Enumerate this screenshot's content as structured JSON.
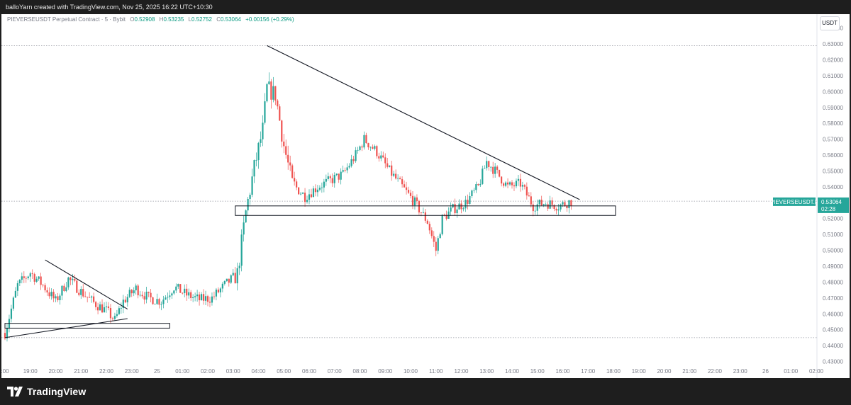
{
  "header": {
    "attribution": "balloYarn created with TradingView.com, Nov 25, 2025 16:22 UTC+10:30"
  },
  "legend": {
    "symbol": "PIEVERSEUSDT Perpetual Contract · 5 · Bybit",
    "open_label": "O",
    "open": "0.52908",
    "high_label": "H",
    "high": "0.53235",
    "low_label": "L",
    "low": "0.52752",
    "close_label": "C",
    "close": "0.53064",
    "change": "+0.00156 (+0.29%)"
  },
  "unit_label": "USDT",
  "price_tag": {
    "symbol": "PIEVERSEUSDT.P",
    "price": "0.53064",
    "countdown": "02:28",
    "color": "#26a69a"
  },
  "branding": {
    "logo_text": "TradingView",
    "icon": "tradingview-logo-icon"
  },
  "colors": {
    "up": "#26a69a",
    "down": "#ef5350",
    "trendline": "#131722",
    "dotted_level": "#9598a1"
  },
  "chart_data": {
    "type": "candlestick",
    "symbol": "PIEVERSEUSDT.P",
    "timeframe": "5",
    "y_axis": {
      "position": "right",
      "ticks": [
        "0.64000",
        "0.63000",
        "0.62000",
        "0.61000",
        "0.60000",
        "0.59000",
        "0.58000",
        "0.57000",
        "0.56000",
        "0.55000",
        "0.54000",
        "0.53000",
        "0.52000",
        "0.51000",
        "0.50000",
        "0.49000",
        "0.48000",
        "0.47000",
        "0.46000",
        "0.45000",
        "0.44000",
        "0.43000"
      ],
      "range": [
        0.428,
        0.643
      ]
    },
    "x_axis": {
      "ticks": [
        ":00",
        "19:00",
        "20:00",
        "21:00",
        "22:00",
        "23:00",
        "25",
        "01:00",
        "02:00",
        "03:00",
        "04:00",
        "05:00",
        "06:00",
        "07:00",
        "08:00",
        "09:00",
        "10:00",
        "11:00",
        "12:00",
        "13:00",
        "14:00",
        "15:00",
        "16:00",
        "17:00",
        "18:00",
        "19:00",
        "20:00",
        "21:00",
        "22:00",
        "23:00",
        "26",
        "01:00",
        "02:00"
      ]
    },
    "keypoints": [
      {
        "time": "18:00",
        "price": 0.448
      },
      {
        "time": "18:30",
        "price": 0.478
      },
      {
        "time": "19:00",
        "price": 0.486
      },
      {
        "time": "19:30",
        "price": 0.478
      },
      {
        "time": "20:00",
        "price": 0.468
      },
      {
        "time": "20:30",
        "price": 0.482
      },
      {
        "time": "21:00",
        "price": 0.474
      },
      {
        "time": "21:30",
        "price": 0.467
      },
      {
        "time": "22:00",
        "price": 0.462
      },
      {
        "time": "22:20",
        "price": 0.456
      },
      {
        "time": "22:40",
        "price": 0.468
      },
      {
        "time": "23:10",
        "price": 0.476
      },
      {
        "time": "23:40",
        "price": 0.47
      },
      {
        "time": "00:10",
        "price": 0.468
      },
      {
        "time": "00:40",
        "price": 0.477
      },
      {
        "time": "01:10",
        "price": 0.472
      },
      {
        "time": "01:40",
        "price": 0.469
      },
      {
        "time": "02:10",
        "price": 0.47
      },
      {
        "time": "02:40",
        "price": 0.478
      },
      {
        "time": "03:10",
        "price": 0.485
      },
      {
        "time": "03:30",
        "price": 0.524
      },
      {
        "time": "03:50",
        "price": 0.552
      },
      {
        "time": "04:10",
        "price": 0.576
      },
      {
        "time": "04:20",
        "price": 0.602
      },
      {
        "time": "04:40",
        "price": 0.598
      },
      {
        "time": "05:00",
        "price": 0.566
      },
      {
        "time": "05:20",
        "price": 0.542
      },
      {
        "time": "05:50",
        "price": 0.534
      },
      {
        "time": "06:20",
        "price": 0.54
      },
      {
        "time": "06:50",
        "price": 0.544
      },
      {
        "time": "07:20",
        "price": 0.548
      },
      {
        "time": "07:50",
        "price": 0.56
      },
      {
        "time": "08:10",
        "price": 0.57
      },
      {
        "time": "08:40",
        "price": 0.562
      },
      {
        "time": "09:10",
        "price": 0.55
      },
      {
        "time": "09:40",
        "price": 0.54
      },
      {
        "time": "10:10",
        "price": 0.53
      },
      {
        "time": "10:40",
        "price": 0.518
      },
      {
        "time": "11:00",
        "price": 0.5
      },
      {
        "time": "11:15",
        "price": 0.52
      },
      {
        "time": "11:40",
        "price": 0.526
      },
      {
        "time": "12:10",
        "price": 0.53
      },
      {
        "time": "12:40",
        "price": 0.54
      },
      {
        "time": "13:00",
        "price": 0.556
      },
      {
        "time": "13:20",
        "price": 0.55
      },
      {
        "time": "13:50",
        "price": 0.54
      },
      {
        "time": "14:20",
        "price": 0.542
      },
      {
        "time": "14:50",
        "price": 0.528
      },
      {
        "time": "15:20",
        "price": 0.53
      },
      {
        "time": "15:50",
        "price": 0.528
      },
      {
        "time": "16:20",
        "price": 0.531
      }
    ],
    "drawings": {
      "dotted_levels": [
        0.629,
        0.531,
        0.445
      ],
      "descending_trendlines": [
        {
          "from": {
            "time": "04:20",
            "price": 0.629
          },
          "to": {
            "time": "16:40",
            "price": 0.532
          }
        },
        {
          "from": {
            "time": "19:35",
            "price": 0.494
          },
          "to": {
            "time": "22:50",
            "price": 0.463
          }
        }
      ],
      "ascending_trendlines": [
        {
          "from": {
            "time": "18:00",
            "price": 0.445
          },
          "to": {
            "time": "22:50",
            "price": 0.457
          }
        }
      ],
      "support_zones": [
        {
          "from_time": "03:05",
          "to_time": "18:05",
          "low": 0.522,
          "high": 0.528
        },
        {
          "from_time": "18:00",
          "to_time": "00:30",
          "low": 0.451,
          "high": 0.454
        }
      ]
    }
  }
}
